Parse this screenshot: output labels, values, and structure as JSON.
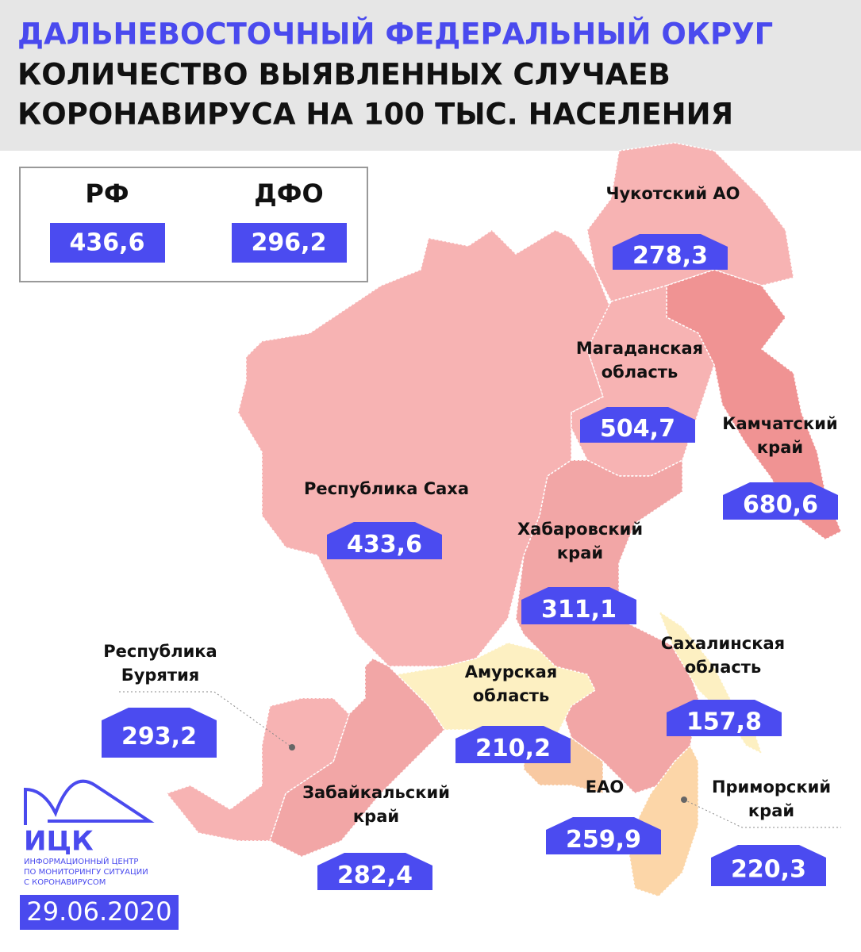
{
  "header": {
    "region": "ДАЛЬНЕВОСТОЧНЫЙ ФЕДЕРАЛЬНЫЙ ОКРУГ",
    "title_lines": [
      "КОЛИЧЕСТВО ВЫЯВЛЕННЫХ СЛУЧАЕВ",
      "КОРОНАВИРУСА НА 100 ТЫС. НАСЕЛЕНИЯ"
    ]
  },
  "summary": [
    {
      "label": "РФ",
      "value": "436,6"
    },
    {
      "label": "ДФО",
      "value": "296,2"
    }
  ],
  "regions": [
    {
      "name_lines": [
        "Чукотский АО"
      ],
      "value": "278,3"
    },
    {
      "name_lines": [
        "Магаданская",
        "область"
      ],
      "value": "504,7"
    },
    {
      "name_lines": [
        "Камчатский",
        "край"
      ],
      "value": "680,6"
    },
    {
      "name_lines": [
        "Республика Саха"
      ],
      "value": "433,6"
    },
    {
      "name_lines": [
        "Хабаровский",
        "край"
      ],
      "value": "311,1"
    },
    {
      "name_lines": [
        "Сахалинская",
        "область"
      ],
      "value": "157,8"
    },
    {
      "name_lines": [
        "Амурская",
        "область"
      ],
      "value": "210,2"
    },
    {
      "name_lines": [
        "Республика",
        "Бурятия"
      ],
      "value": "293,2"
    },
    {
      "name_lines": [
        "Забайкальский",
        "край"
      ],
      "value": "282,4"
    },
    {
      "name_lines": [
        "ЕАО"
      ],
      "value": "259,9"
    },
    {
      "name_lines": [
        "Приморский",
        "край"
      ],
      "value": "220,3"
    }
  ],
  "logo": {
    "name": "ИЦК",
    "lines": [
      "ИНФОРМАЦИОННЫЙ ЦЕНТР",
      "ПО МОНИТОРИНГУ СИТУАЦИИ",
      "С КОРОНАВИРУСОМ"
    ]
  },
  "date": "29.06.2020"
}
